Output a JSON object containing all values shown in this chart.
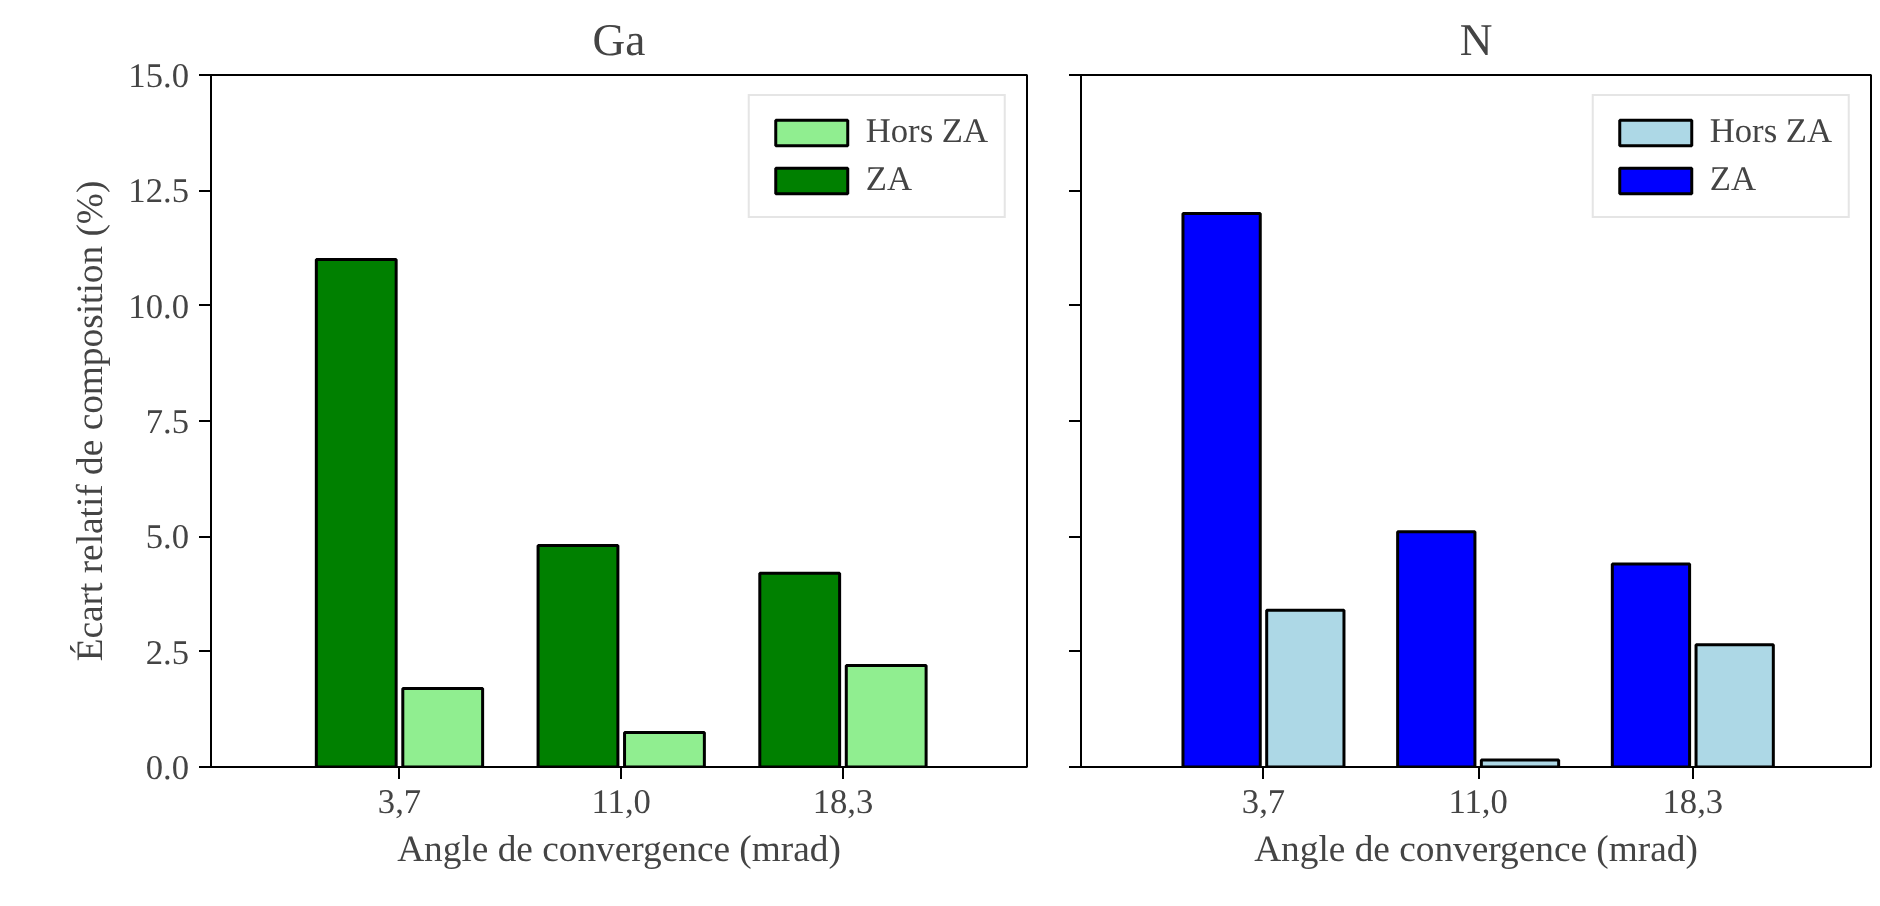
{
  "chart_data": [
    {
      "type": "bar",
      "title": "Ga",
      "xlabel": "Angle de convergence (mrad)",
      "ylabel": "Écart relatif de composition (%)",
      "categories": [
        "3,7",
        "11,0",
        "18,3"
      ],
      "series": [
        {
          "name": "Hors ZA",
          "color": "#90ee90",
          "values": [
            1.7,
            0.75,
            2.2
          ]
        },
        {
          "name": "ZA",
          "color": "#008000",
          "values": [
            11.0,
            4.8,
            4.2
          ]
        }
      ],
      "ylim": [
        0,
        15
      ],
      "yticks": [
        {
          "value": 0,
          "label": "0.0"
        },
        {
          "value": 2.5,
          "label": "2.5"
        },
        {
          "value": 5,
          "label": "5.0"
        },
        {
          "value": 7.5,
          "label": "7.5"
        },
        {
          "value": 10,
          "label": "10.0"
        },
        {
          "value": 12.5,
          "label": "12.5"
        },
        {
          "value": 15,
          "label": "15.0"
        }
      ],
      "legend": "top right"
    },
    {
      "type": "bar",
      "title": "N",
      "xlabel": "Angle de convergence (mrad)",
      "categories": [
        "3,7",
        "11,0",
        "18,3"
      ],
      "series": [
        {
          "name": "Hors ZA",
          "color": "#add8e6",
          "values": [
            3.4,
            0.15,
            2.65
          ]
        },
        {
          "name": "ZA",
          "color": "#0000ff",
          "values": [
            12.0,
            5.1,
            4.4
          ]
        }
      ],
      "ylim": [
        0,
        15
      ],
      "yticks": [
        {
          "value": 0,
          "label": null
        },
        {
          "value": 2.5,
          "label": null
        },
        {
          "value": 5,
          "label": null
        },
        {
          "value": 7.5,
          "label": null
        },
        {
          "value": 10,
          "label": null
        },
        {
          "value": 12.5,
          "label": null
        },
        {
          "value": 15,
          "label": null
        }
      ],
      "legend": "top right",
      "tick_labels": "x"
    }
  ]
}
